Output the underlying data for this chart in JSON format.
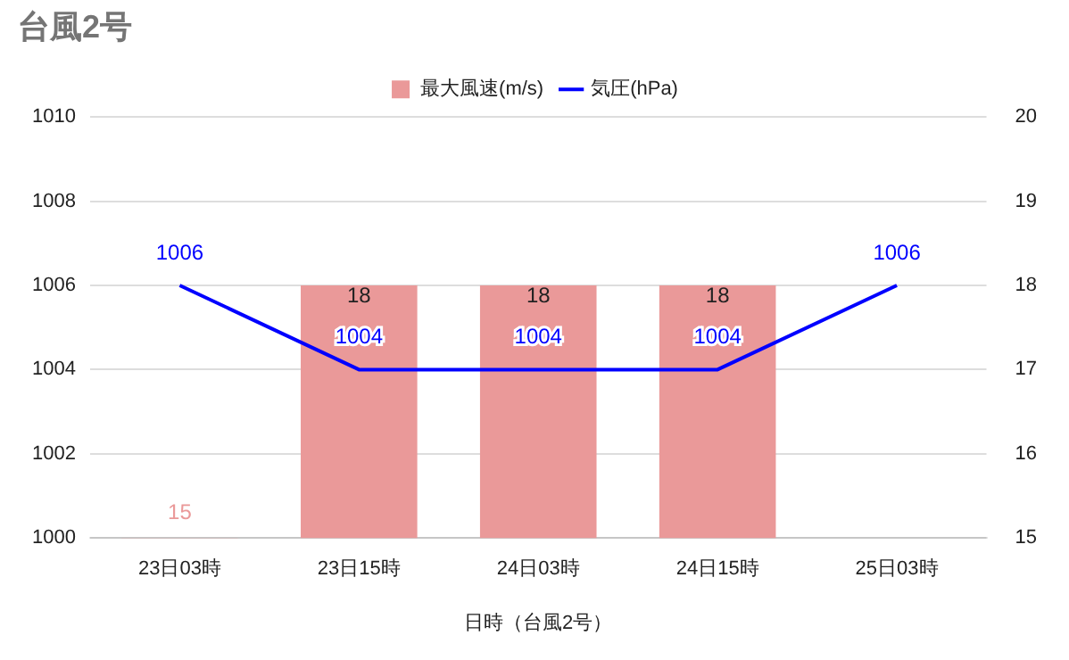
{
  "chart_data": {
    "type": "bar",
    "title": "台風2号",
    "xlabel": "日時（台風2号）",
    "categories": [
      "23日03時",
      "23日15時",
      "24日03時",
      "24日15時",
      "25日03時"
    ],
    "series": [
      {
        "name": "最大風速(m/s)",
        "axis": "y2",
        "color": "#ea9999",
        "values": [
          15,
          18,
          18,
          18,
          null
        ]
      },
      {
        "name": "気圧(hPa)",
        "type": "line",
        "color": "#0000ff",
        "values": [
          1006,
          1004,
          1004,
          1004,
          1006
        ]
      }
    ],
    "ylim": [
      1000,
      1010
    ],
    "yticks": [
      1000,
      1002,
      1004,
      1006,
      1008,
      1010
    ],
    "y2lim": [
      15,
      20
    ],
    "y2ticks": [
      15,
      16,
      17,
      18,
      19,
      20
    ],
    "grid": "y",
    "legend": "top",
    "data_labels": true
  }
}
